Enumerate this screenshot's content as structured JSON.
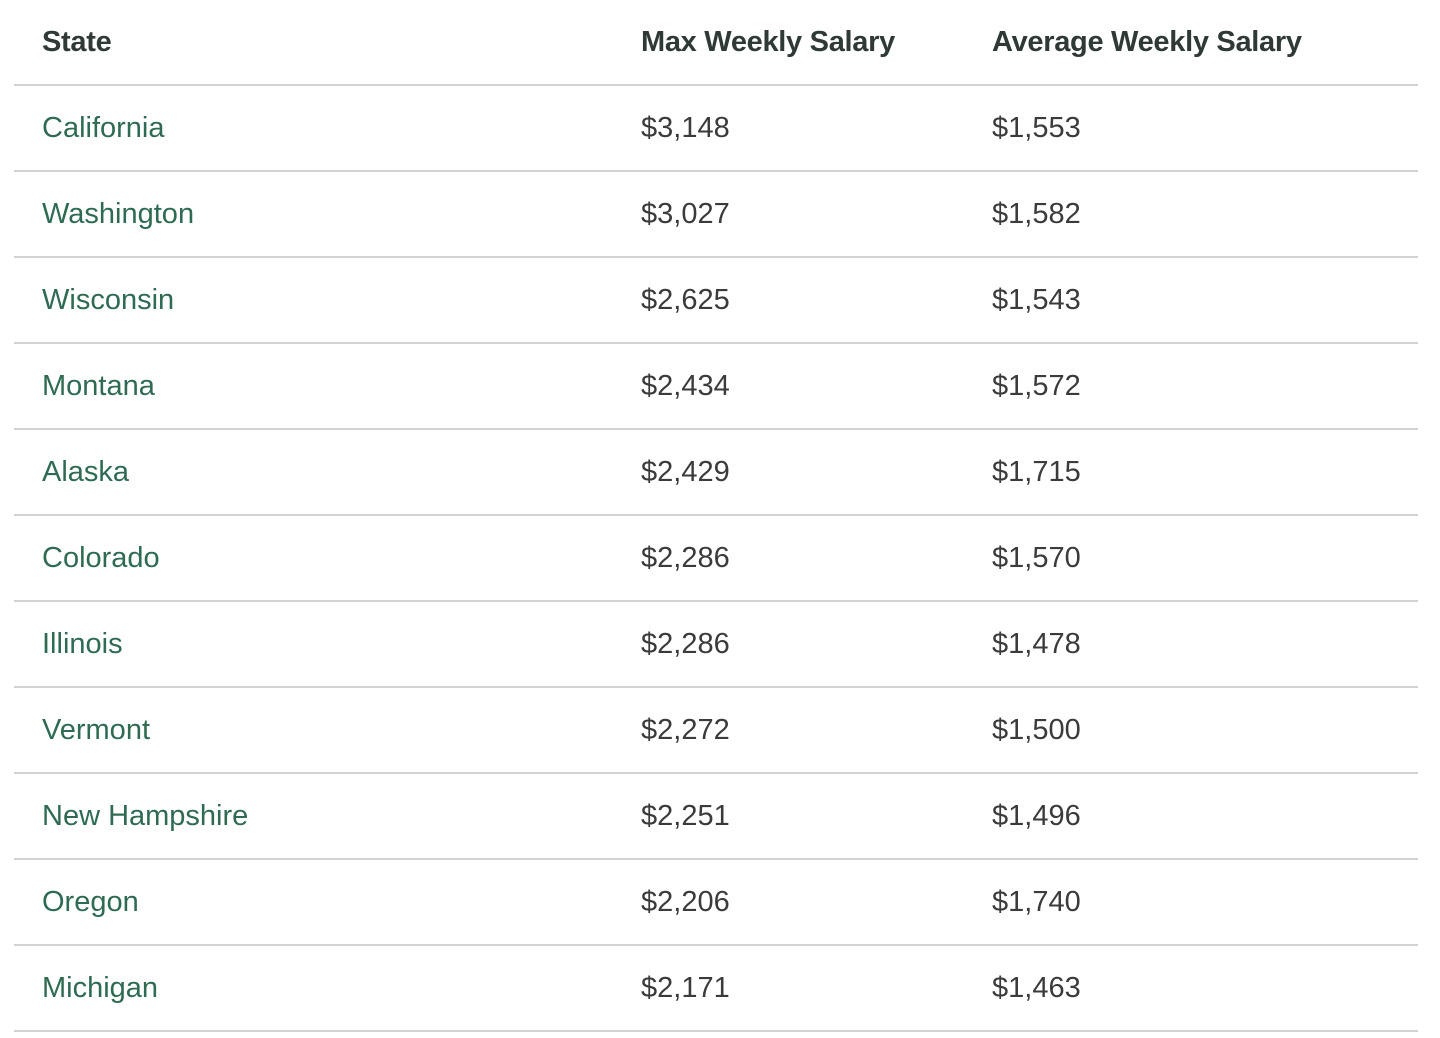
{
  "table": {
    "headers": [
      "State",
      "Max Weekly Salary",
      "Average Weekly Salary"
    ],
    "rows": [
      {
        "state": "California",
        "max": "$3,148",
        "avg": "$1,553"
      },
      {
        "state": "Washington",
        "max": "$3,027",
        "avg": "$1,582"
      },
      {
        "state": "Wisconsin",
        "max": "$2,625",
        "avg": "$1,543"
      },
      {
        "state": "Montana",
        "max": "$2,434",
        "avg": "$1,572"
      },
      {
        "state": "Alaska",
        "max": "$2,429",
        "avg": "$1,715"
      },
      {
        "state": "Colorado",
        "max": "$2,286",
        "avg": "$1,570"
      },
      {
        "state": "Illinois",
        "max": "$2,286",
        "avg": "$1,478"
      },
      {
        "state": "Vermont",
        "max": "$2,272",
        "avg": "$1,500"
      },
      {
        "state": "New Hampshire",
        "max": "$2,251",
        "avg": "$1,496"
      },
      {
        "state": "Oregon",
        "max": "$2,206",
        "avg": "$1,740"
      },
      {
        "state": "Michigan",
        "max": "$2,171",
        "avg": "$1,463"
      }
    ]
  },
  "colors": {
    "link": "#2e6b52",
    "header_text": "#2f3a36",
    "cell_text": "#3b3b3b",
    "divider": "#d2d2d2"
  }
}
